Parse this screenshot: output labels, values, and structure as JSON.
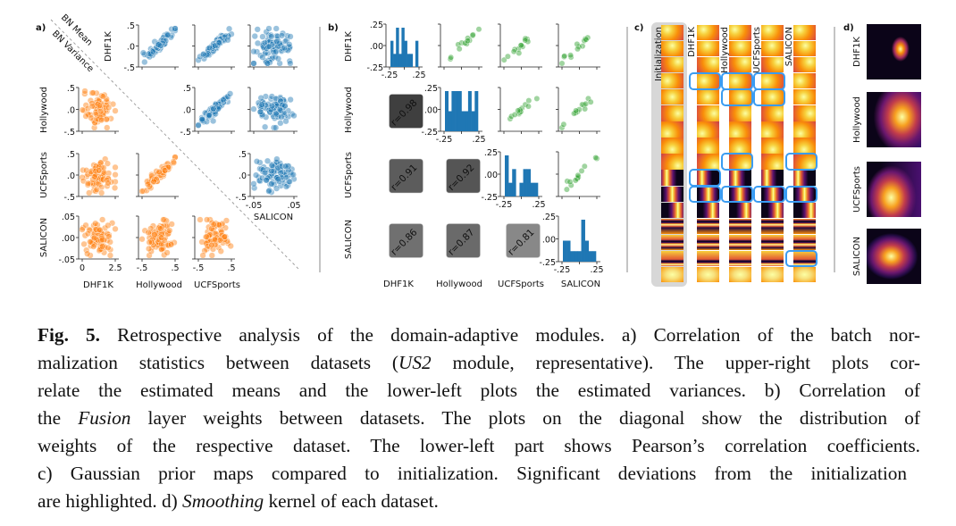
{
  "panel_labels": {
    "a": "a)",
    "b": "b)",
    "c": "c)",
    "d": "d)"
  },
  "datasets": [
    "DHF1K",
    "Hollywood",
    "UCFSports",
    "SALICON"
  ],
  "colors": {
    "mean": "#1f77b4",
    "variance": "#ff7f0e",
    "fusion": "#2ca02c",
    "hist": "#1f77b4",
    "highlight": "#3a9cf2"
  },
  "chart_data": [
    {
      "panel": "a",
      "type": "scatter",
      "diagonal_labels": {
        "upper": "BN Mean",
        "lower": "BN Variance"
      },
      "upper_series": "BN Mean",
      "lower_series": "BN Variance",
      "y_ticks": {
        "DHF1K": [
          ".5",
          ".0",
          "-.5"
        ],
        "Hollywood": [
          ".5",
          ".0",
          "-.5"
        ],
        "UCFSports": [
          ".5",
          ".0",
          "-.5"
        ],
        "SALICON": [
          ".05",
          ".00",
          "-.05"
        ]
      },
      "x_ticks": {
        "DHF1K": [
          "0",
          "2.5"
        ],
        "Hollywood": [
          "-.5",
          ".5"
        ],
        "UCFSports": [
          "-.5",
          ".5"
        ],
        "SALICON": [
          "-.05",
          ".05"
        ]
      },
      "upper_correlation": [
        [
          null,
          "strong",
          "strong",
          "weak"
        ],
        [
          null,
          null,
          "strong",
          "weak"
        ],
        [
          null,
          null,
          null,
          "weak"
        ]
      ],
      "lower_correlation": [
        [
          "weak"
        ],
        [
          "weak",
          "strong"
        ],
        [
          "weak",
          "weak",
          "weak"
        ]
      ]
    },
    {
      "panel": "b",
      "type": "scatter",
      "y_ticks": [
        ".25",
        ".00",
        "-.25"
      ],
      "x_ticks": [
        "-.25",
        ".25"
      ],
      "pearson_r": [
        {
          "row": "Hollywood",
          "col": "DHF1K",
          "label": "r=0.98",
          "value": 0.98,
          "shade": "#3f3f3f"
        },
        {
          "row": "UCFSports",
          "col": "DHF1K",
          "label": "r=0.91",
          "value": 0.91,
          "shade": "#5c5c5c"
        },
        {
          "row": "UCFSports",
          "col": "Hollywood",
          "label": "r=0.92",
          "value": 0.92,
          "shade": "#555555"
        },
        {
          "row": "SALICON",
          "col": "DHF1K",
          "label": "r=0.86",
          "value": 0.86,
          "shade": "#707070"
        },
        {
          "row": "SALICON",
          "col": "Hollywood",
          "label": "r=0.87",
          "value": 0.87,
          "shade": "#6a6a6a"
        },
        {
          "row": "SALICON",
          "col": "UCFSports",
          "label": "r=0.81",
          "value": 0.81,
          "shade": "#888888"
        }
      ],
      "histograms": {
        "DHF1K": [
          2,
          1,
          3,
          1,
          3,
          2,
          1,
          1,
          0,
          2
        ],
        "Hollywood": [
          2,
          1,
          2,
          2,
          2,
          1,
          1,
          2,
          1,
          2
        ],
        "UCFSports": [
          3,
          1,
          2,
          0,
          1,
          2,
          2,
          1,
          1
        ],
        "SALICON": [
          1,
          1,
          0.5,
          0.5,
          0.5,
          2,
          1,
          0.5,
          0.5
        ]
      }
    },
    {
      "panel": "c",
      "type": "heatmap",
      "columns": [
        "Initialization",
        "DHF1K",
        "Hollywood",
        "UCFSports",
        "SALICON"
      ],
      "num_maps": 16,
      "highlighted_maps": {
        "DHF1K": [
          4,
          10,
          11
        ],
        "Hollywood": [
          4,
          5,
          9,
          11
        ],
        "UCFSports": [
          4,
          5,
          11
        ],
        "SALICON": [
          9,
          11,
          15
        ]
      }
    },
    {
      "panel": "d",
      "type": "heatmap",
      "rows": [
        "DHF1K",
        "Hollywood",
        "UCFSports",
        "SALICON"
      ]
    }
  ],
  "caption": {
    "fig_label": "Fig. 5.",
    "l1": " Retrospective analysis of the domain-adaptive modules. a) Correlation of the batch nor-",
    "l2a": "malization statistics between datasets (",
    "l2i": "US2",
    "l2b": " module, representative). The upper-right plots cor-",
    "l3": "relate the estimated means and the lower-left plots the estimated variances. b) Correlation of",
    "l4a": "the ",
    "l4i": "Fusion",
    "l4b": " layer weights between datasets. The plots on the diagonal show the distribution of",
    "l5": "weights of the respective dataset. The lower-left part shows Pearson’s correlation coefficients.",
    "l6": "c)  Gaussian prior maps compared to initialization. Significant deviations from the initialization",
    "l7a": "are highlighted. d) ",
    "l7i": "Smoothing",
    "l7b": " kernel of each dataset."
  }
}
